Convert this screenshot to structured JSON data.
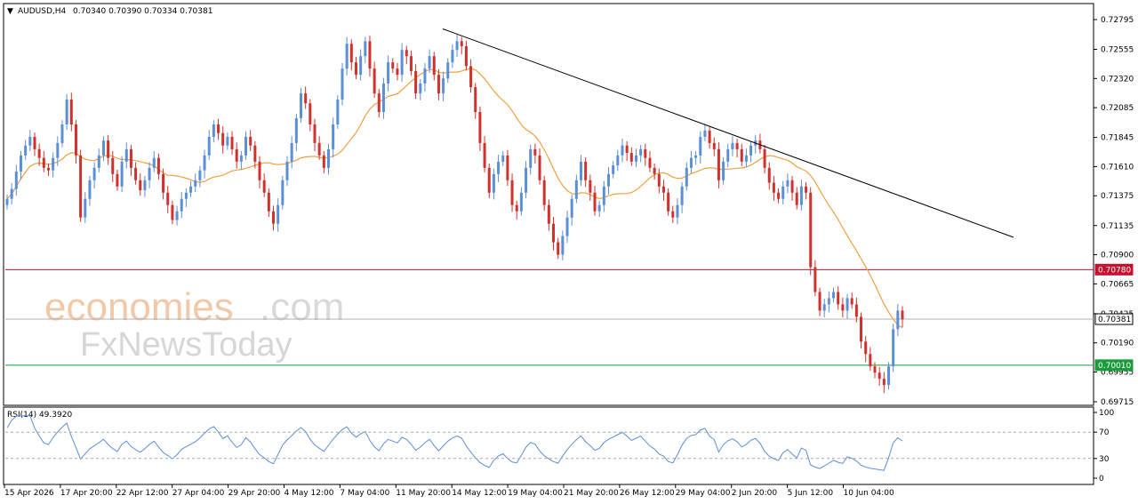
{
  "header": {
    "symbol": "AUDUSD,H4",
    "ohlc": "0.70340 0.70390 0.70334 0.70381"
  },
  "rsi_header": "RSI(14) 49.3920",
  "watermark": {
    "brand_main": "economies",
    "brand_suffix": ".com",
    "brand_secondary": "FxNewsToday"
  },
  "price_axis": {
    "ticks": [
      "0.72795",
      "0.72555",
      "0.72320",
      "0.72085",
      "0.71845",
      "0.71610",
      "0.71375",
      "0.71135",
      "0.70900",
      "0.70665",
      "0.70425",
      "0.70190",
      "0.69955",
      "0.69715"
    ]
  },
  "rsi_axis": {
    "ticks": [
      "100",
      "70",
      "30",
      "0"
    ]
  },
  "levels": {
    "resistance": {
      "label": "0.70780",
      "value": 0.7078,
      "color": "#c8102e"
    },
    "current": {
      "label": "0.70381",
      "value": 0.70381,
      "color": "#b0b0b0"
    },
    "support": {
      "label": "0.70010",
      "value": 0.7001,
      "color": "#1a9c3a"
    }
  },
  "time_axis": {
    "labels": [
      "15 Apr 2026",
      "17 Apr 20:00",
      "22 Apr 12:00",
      "27 Apr 04:00",
      "29 Apr 20:00",
      "4 May 12:00",
      "7 May 04:00",
      "11 May 20:00",
      "14 May 12:00",
      "19 May 04:00",
      "21 May 20:00",
      "26 May 12:00",
      "29 May 04:00",
      "2 Jun 20:00",
      "5 Jun 12:00",
      "10 Jun 04:00"
    ]
  },
  "colors": {
    "bull": "#5b8fd6",
    "bear": "#d0312d",
    "ma": "#f0a040",
    "rsi": "#5b8fd6",
    "trendline": "#000000"
  },
  "chart_data": {
    "type": "candlestick",
    "ylim": [
      0.69715,
      0.72795
    ],
    "rsi_ylim": [
      0,
      100
    ],
    "rsi_levels": [
      70,
      30
    ],
    "candles_close": [
      0.7135,
      0.7143,
      0.7157,
      0.717,
      0.7178,
      0.7185,
      0.7175,
      0.7168,
      0.716,
      0.7158,
      0.7168,
      0.718,
      0.7195,
      0.7215,
      0.7195,
      0.717,
      0.712,
      0.7135,
      0.715,
      0.716,
      0.717,
      0.7182,
      0.7168,
      0.7155,
      0.7145,
      0.7165,
      0.7175,
      0.716,
      0.715,
      0.7142,
      0.715,
      0.716,
      0.7168,
      0.7155,
      0.714,
      0.713,
      0.7118,
      0.7125,
      0.7135,
      0.714,
      0.7145,
      0.715,
      0.7158,
      0.717,
      0.7185,
      0.7195,
      0.7188,
      0.7178,
      0.7185,
      0.7175,
      0.7165,
      0.717,
      0.7185,
      0.7178,
      0.7165,
      0.715,
      0.714,
      0.7125,
      0.7115,
      0.713,
      0.715,
      0.7165,
      0.718,
      0.72,
      0.722,
      0.7212,
      0.7195,
      0.718,
      0.717,
      0.716,
      0.7175,
      0.7195,
      0.7215,
      0.724,
      0.726,
      0.7245,
      0.7235,
      0.725,
      0.7262,
      0.724,
      0.722,
      0.7205,
      0.7228,
      0.7245,
      0.724,
      0.7235,
      0.7255,
      0.725,
      0.7238,
      0.722,
      0.7228,
      0.724,
      0.725,
      0.7235,
      0.722,
      0.7232,
      0.7245,
      0.7255,
      0.7262,
      0.7258,
      0.7242,
      0.7225,
      0.7205,
      0.718,
      0.716,
      0.714,
      0.7155,
      0.7165,
      0.717,
      0.715,
      0.713,
      0.7125,
      0.714,
      0.716,
      0.7175,
      0.717,
      0.715,
      0.713,
      0.7115,
      0.71,
      0.709,
      0.7105,
      0.712,
      0.7135,
      0.715,
      0.7165,
      0.715,
      0.714,
      0.7125,
      0.713,
      0.7145,
      0.7155,
      0.7162,
      0.717,
      0.7178,
      0.7172,
      0.7165,
      0.717,
      0.7175,
      0.7168,
      0.716,
      0.7155,
      0.7145,
      0.714,
      0.7125,
      0.712,
      0.713,
      0.7145,
      0.716,
      0.7168,
      0.717,
      0.7185,
      0.719,
      0.718,
      0.7175,
      0.715,
      0.7165,
      0.7175,
      0.718,
      0.7175,
      0.7165,
      0.717,
      0.7178,
      0.7182,
      0.7175,
      0.716,
      0.7148,
      0.714,
      0.7135,
      0.7145,
      0.715,
      0.714,
      0.713,
      0.7145,
      0.714,
      0.708,
      0.706,
      0.7045,
      0.705,
      0.7055,
      0.706,
      0.705,
      0.7045,
      0.7055,
      0.705,
      0.704,
      0.702,
      0.701,
      0.7,
      0.6995,
      0.699,
      0.6985,
      0.7,
      0.703,
      0.7045,
      0.7038
    ],
    "ma_note": "moving average overlay",
    "trendline": {
      "from_price": 0.7272,
      "to_price": 0.7104
    }
  }
}
